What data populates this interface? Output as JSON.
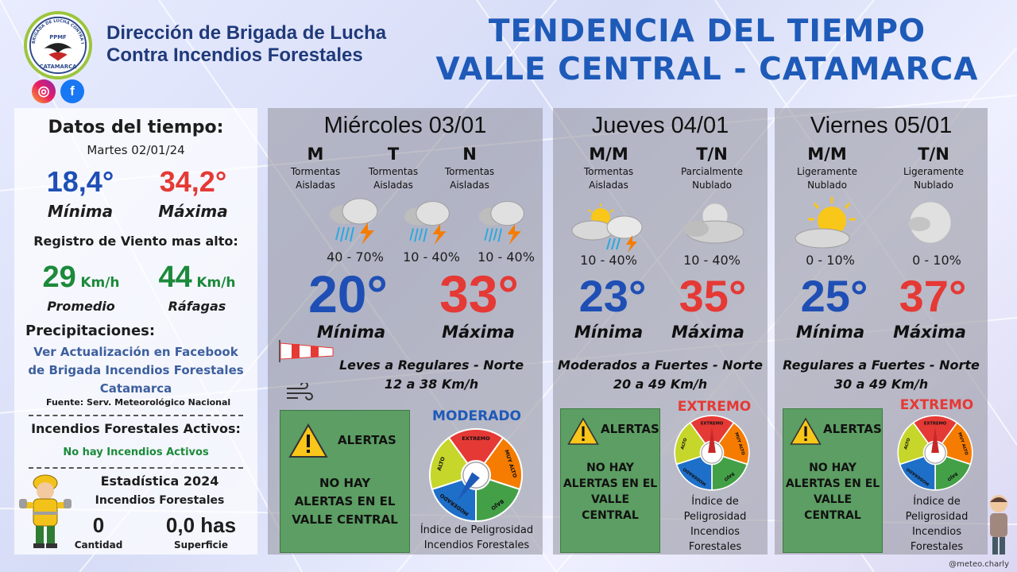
{
  "header": {
    "org_line1": "Dirección de Brigada de Lucha",
    "org_line2": "Contra Incendios Forestales",
    "title_line1": "TENDENCIA DEL TIEMPO",
    "title_line2": "VALLE CENTRAL - CATAMARCA",
    "logo_top": "BRIGADA DE LUCHA CONTRA INCENDIOS FORESTALES",
    "logo_mid": "PPMF",
    "logo_bottom": "CATAMARCA",
    "social_icons": [
      "instagram-icon",
      "facebook-icon"
    ]
  },
  "left": {
    "title": "Datos del tiempo:",
    "date": "Martes 02/01/24",
    "min_value": "18,4°",
    "min_label": "Mínima",
    "max_value": "34,2°",
    "max_label": "Máxima",
    "wind_title": "Registro de Viento mas alto:",
    "wind_avg": "29",
    "wind_gust": "44",
    "wind_unit": "Km/h",
    "wind_avg_label": "Promedio",
    "wind_gust_label": "Ráfagas",
    "precip_title": "Precipitaciones:",
    "precip_line1": "Ver Actualización en Facebook",
    "precip_line2": "de Brigada Incendios Forestales",
    "precip_line3": "Catamarca",
    "source": "Fuente: Serv. Meteorológico Nacional",
    "fires_title": "Incendios Forestales Activos:",
    "fires_status": "No hay Incendios Activos",
    "stats_title": "Estadística 2024",
    "stats_sub": "Incendios Forestales",
    "count_value": "0",
    "count_label": "Cantidad",
    "area_value": "0,0 has",
    "area_label": "Superficie"
  },
  "days": [
    {
      "name": "Miércoles 03/01",
      "slots": [
        {
          "label": "M",
          "desc1": "Tormentas",
          "desc2": "Aisladas",
          "prob": "40 - 70%",
          "icon": "storm-icon"
        },
        {
          "label": "T",
          "desc1": "Tormentas",
          "desc2": "Aisladas",
          "prob": "10 - 40%",
          "icon": "storm-icon"
        },
        {
          "label": "N",
          "desc1": "Tormentas",
          "desc2": "Aisladas",
          "prob": "10 - 40%",
          "icon": "storm-icon"
        }
      ],
      "min": "20°",
      "max": "33°",
      "min_label": "Mínima",
      "max_label": "Máxima",
      "wind_line1": "Leves a Regulares - Norte",
      "wind_line2": "12 a 38 Km/h",
      "alert_title": "ALERTAS",
      "alert_line1": "NO HAY",
      "alert_line2": "ALERTAS EN EL",
      "alert_line3": "VALLE CENTRAL",
      "level": "MODERADO",
      "level_color": "#1e5ab8",
      "index_line1": "Índice de Peligrosidad",
      "index_line2": "Incendios Forestales"
    },
    {
      "name": "Jueves 04/01",
      "slots": [
        {
          "label": "M/M",
          "desc1": "Tormentas",
          "desc2": "Aisladas",
          "prob": "10 - 40%",
          "icon": "sun-storm-icon"
        },
        {
          "label": "T/N",
          "desc1": "Parcialmente",
          "desc2": "Nublado",
          "prob": "10 - 40%",
          "icon": "moon-cloud-icon"
        }
      ],
      "min": "23°",
      "max": "35°",
      "min_label": "Mínima",
      "max_label": "Máxima",
      "wind_line1": "Moderados a Fuertes - Norte",
      "wind_line2": "20 a 49 Km/h",
      "alert_title": "ALERTAS",
      "alert_line1": "NO HAY",
      "alert_line2": "ALERTAS EN EL",
      "alert_line3": "VALLE",
      "alert_line4": "CENTRAL",
      "level": "EXTREMO",
      "level_color": "#e53935",
      "index_line1": "Índice de",
      "index_line2": "Peligrosidad",
      "index_line3": "Incendios",
      "index_line4": "Forestales"
    },
    {
      "name": "Viernes 05/01",
      "slots": [
        {
          "label": "M/M",
          "desc1": "Ligeramente",
          "desc2": "Nublado",
          "prob": "0 - 10%",
          "icon": "sun-cloud-icon"
        },
        {
          "label": "T/N",
          "desc1": "Ligeramente",
          "desc2": "Nublado",
          "prob": "0 - 10%",
          "icon": "moon-icon"
        }
      ],
      "min": "25°",
      "max": "37°",
      "min_label": "Mínima",
      "max_label": "Máxima",
      "wind_line1": "Regulares a Fuertes - Norte",
      "wind_line2": "30 a 49 Km/h",
      "alert_title": "ALERTAS",
      "alert_line1": "NO HAY",
      "alert_line2": "ALERTAS EN EL",
      "alert_line3": "VALLE CENTRAL",
      "level": "EXTREMO",
      "level_color": "#e53935",
      "index_line1": "Índice de",
      "index_line2": "Peligrosidad",
      "index_line3": "Incendios",
      "index_line4": "Forestales"
    }
  ],
  "gauge_labels": [
    "EXTREMO",
    "MUY ALTO",
    "BAJO",
    "MODERADO",
    "ALTO"
  ],
  "colors": {
    "min_blue": "#1f4fb5",
    "max_red": "#e53935",
    "alert_green": "#5c9e63",
    "gauge_red": "#e53935",
    "gauge_orange": "#f57c00",
    "gauge_green": "#43a047",
    "gauge_blue": "#1e6fc8",
    "gauge_yellow": "#c6d62a"
  },
  "credit": "@meteo.charly"
}
